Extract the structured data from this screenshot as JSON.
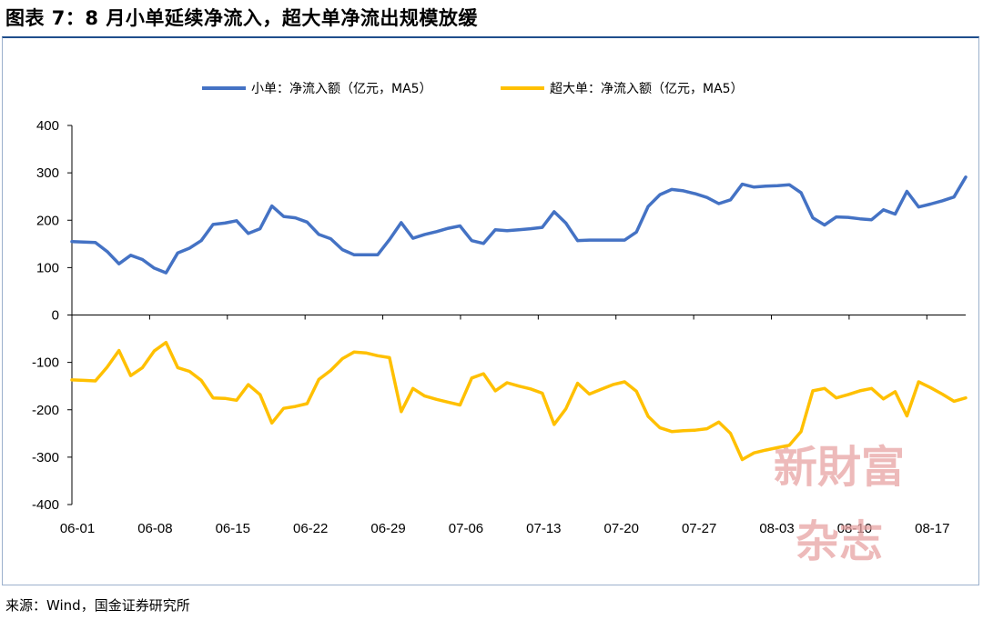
{
  "title": "图表 7：8 月小单延续净流入，超大单净流出规模放缓",
  "source": "来源：Wind，国金证券研究所",
  "watermark": {
    "line1": "新財富",
    "line2": "杂志"
  },
  "chart_data": {
    "type": "line",
    "xlabel": "",
    "ylabel": "",
    "ylim": [
      -400,
      400
    ],
    "yticks": [
      400,
      300,
      200,
      100,
      0,
      -100,
      -200,
      -300,
      -400
    ],
    "ytick_labels": [
      "400",
      "300",
      "200",
      "100",
      "0",
      "-100",
      "-200",
      "-300",
      "-400"
    ],
    "xtick_labels": [
      "06-01",
      "06-08",
      "06-15",
      "06-22",
      "06-29",
      "07-06",
      "07-13",
      "07-20",
      "07-27",
      "08-03",
      "08-10",
      "08-17"
    ],
    "legend_position": "top-center",
    "grid": false,
    "series": [
      {
        "name": "小单：净流入额（亿元，MA5）",
        "color": "#4472c4",
        "values": [
          155,
          154,
          153,
          134,
          108,
          126,
          117,
          99,
          89,
          131,
          141,
          157,
          191,
          194,
          199,
          172,
          182,
          230,
          208,
          205,
          196,
          170,
          161,
          138,
          127,
          127,
          127,
          159,
          195,
          162,
          170,
          176,
          183,
          188,
          157,
          151,
          180,
          178,
          180,
          182,
          185,
          218,
          194,
          157,
          158,
          158,
          158,
          158,
          175,
          229,
          254,
          265,
          262,
          256,
          248,
          235,
          243,
          276,
          270,
          272,
          273,
          275,
          258,
          205,
          190,
          207,
          206,
          203,
          201,
          222,
          213,
          261,
          228,
          234,
          241,
          249,
          291
        ]
      },
      {
        "name": "超大单：净流入额（亿元，MA5）",
        "color": "#ffc000",
        "values": [
          -137,
          -138,
          -139,
          -110,
          -75,
          -128,
          -111,
          -76,
          -58,
          -111,
          -119,
          -138,
          -175,
          -176,
          -180,
          -147,
          -168,
          -228,
          -197,
          -193,
          -187,
          -136,
          -117,
          -92,
          -78,
          -80,
          -86,
          -90,
          -204,
          -155,
          -171,
          -178,
          -184,
          -190,
          -133,
          -124,
          -160,
          -143,
          -150,
          -156,
          -165,
          -231,
          -198,
          -144,
          -167,
          -157,
          -147,
          -141,
          -161,
          -214,
          -238,
          -246,
          -244,
          -243,
          -240,
          -226,
          -250,
          -305,
          -291,
          -285,
          -280,
          -275,
          -246,
          -160,
          -155,
          -175,
          -168,
          -160,
          -155,
          -177,
          -162,
          -213,
          -141,
          -153,
          -167,
          -182,
          -175
        ]
      }
    ]
  }
}
